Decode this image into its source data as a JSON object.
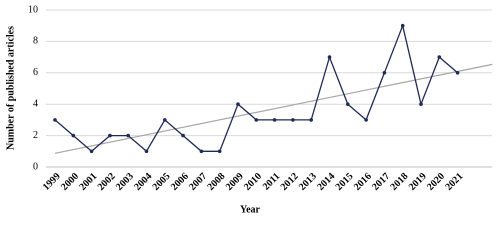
{
  "chart_data": {
    "type": "line",
    "x_label": "Year",
    "y_label": "Number of published articles",
    "categories": [
      "1999",
      "2000",
      "2001",
      "2002",
      "2003",
      "2004",
      "2005",
      "2006",
      "2007",
      "2008",
      "2009",
      "2010",
      "2011",
      "2012",
      "2013",
      "2014",
      "2015",
      "2016",
      "2017",
      "2018",
      "2019",
      "2020",
      "2021"
    ],
    "series": [
      {
        "color": "#1f2a55",
        "values": [
          3,
          2,
          1,
          2,
          2,
          1,
          3,
          2,
          1,
          1,
          4,
          3,
          3,
          3,
          3,
          7,
          4,
          3,
          6,
          9,
          4,
          7,
          6
        ]
      }
    ],
    "ylim": [
      0,
      10
    ],
    "yticks": [
      0,
      2,
      4,
      6,
      8,
      10
    ],
    "grid": true,
    "trendline": true,
    "trendline_color": "#a6a6a6"
  }
}
